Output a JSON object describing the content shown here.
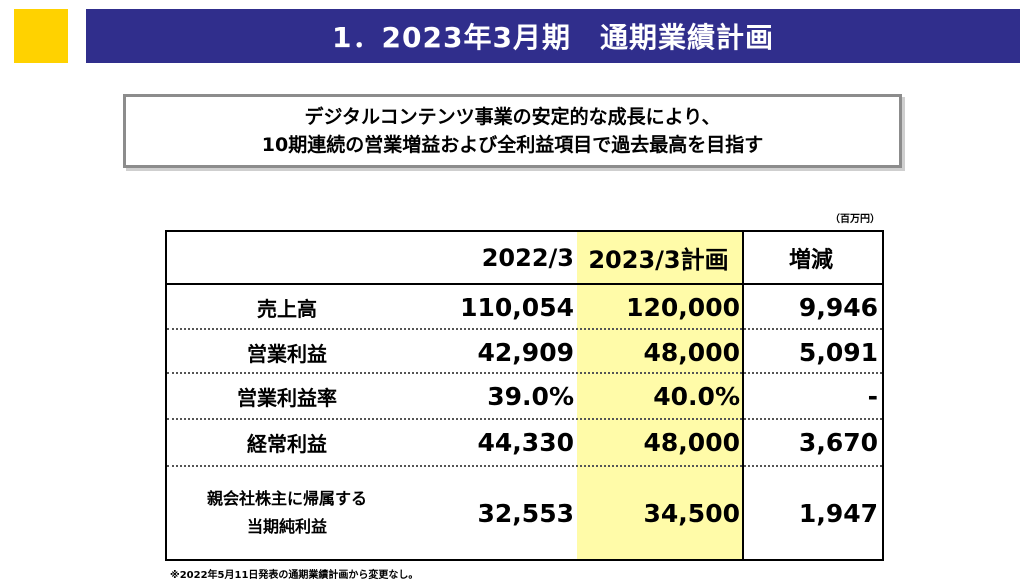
{
  "title": "1．2023年3月期　通期業績計画",
  "headline": {
    "line1": "デジタルコンテンツ事業の安定的な成長により、",
    "line2": "10期連続の営業増益および全利益項目で過去最高を目指す"
  },
  "unit": "（百万円）",
  "table": {
    "headers": {
      "prev": "2022/3",
      "plan": "2023/3計画",
      "diff": "増減"
    },
    "rows": [
      {
        "label": "売上高",
        "prev": "110,054",
        "plan": "120,000",
        "diff": "9,946"
      },
      {
        "label": "営業利益",
        "prev": "42,909",
        "plan": "48,000",
        "diff": "5,091"
      },
      {
        "label": "営業利益率",
        "prev": "39.0%",
        "plan": "40.0%",
        "diff": "-"
      },
      {
        "label": "経常利益",
        "prev": "44,330",
        "plan": "48,000",
        "diff": "3,670"
      },
      {
        "label_line1": "親会社株主に帰属する",
        "label_line2": "当期純利益",
        "prev": "32,553",
        "plan": "34,500",
        "diff": "1,947"
      }
    ]
  },
  "footnote": "※2022年5月11日発表の通期業績計画から変更なし。",
  "colors": {
    "title_bar": "#302E8C",
    "accent": "#FFD200",
    "highlight": "#FFFBA8"
  }
}
